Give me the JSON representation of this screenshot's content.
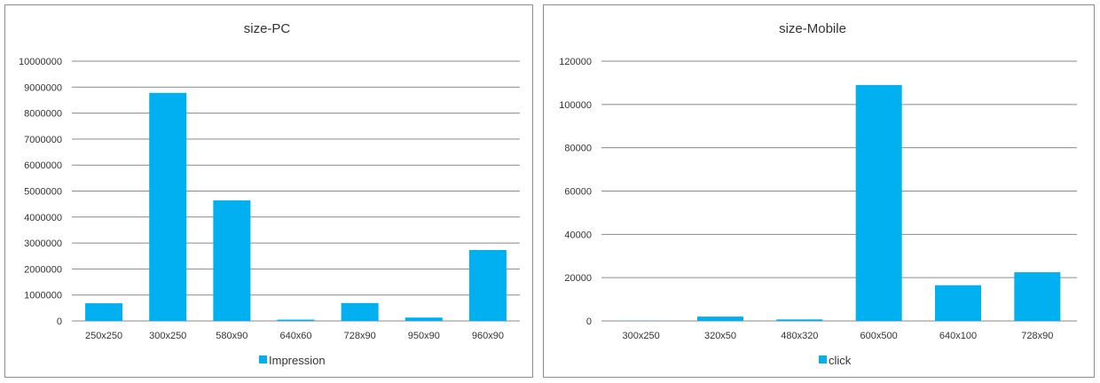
{
  "colors": {
    "bar": "#00b0f0",
    "grid": "#8a8a8a",
    "text": "#333333",
    "border": "#8c8c8c"
  },
  "chart_data": [
    {
      "type": "bar",
      "title": "size-PC",
      "categories": [
        "250x250",
        "300x250",
        "580x90",
        "640x60",
        "728x90",
        "950x90",
        "960x90"
      ],
      "series": [
        {
          "name": "Impression",
          "values": [
            680000,
            8780000,
            4640000,
            50000,
            690000,
            130000,
            2730000
          ]
        }
      ],
      "yticks": [
        "0",
        "1000000",
        "2000000",
        "3000000",
        "4000000",
        "5000000",
        "6000000",
        "7000000",
        "8000000",
        "9000000",
        "10000000"
      ],
      "ylim": [
        0,
        10000000
      ],
      "grid": true,
      "legend": "bottom"
    },
    {
      "type": "bar",
      "title": "size-Mobile",
      "categories": [
        "300x250",
        "320x50",
        "480x320",
        "600x500",
        "640x100",
        "728x90"
      ],
      "series": [
        {
          "name": "click",
          "values": [
            100,
            2000,
            700,
            109000,
            16500,
            22500
          ]
        }
      ],
      "yticks": [
        "0",
        "20000",
        "40000",
        "60000",
        "80000",
        "100000",
        "120000"
      ],
      "ylim": [
        0,
        120000
      ],
      "grid": true,
      "legend": "bottom"
    }
  ]
}
